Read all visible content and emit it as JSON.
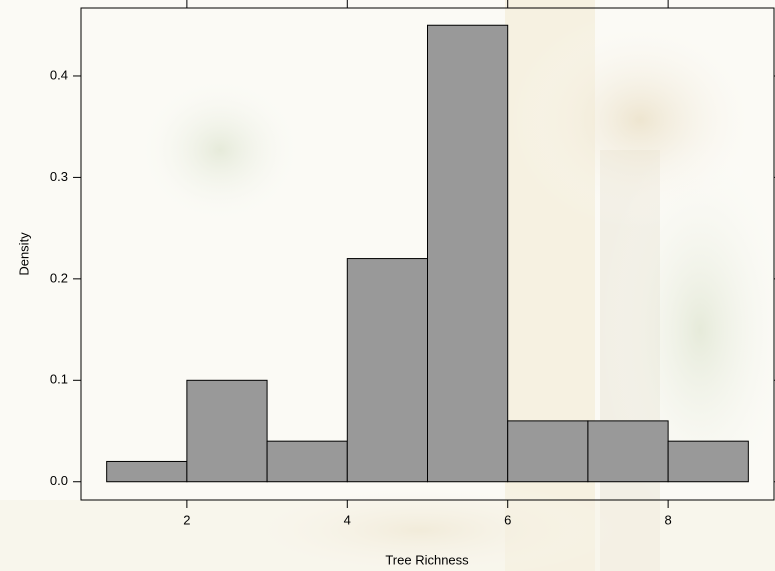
{
  "chart_data": {
    "type": "histogram",
    "xlabel": "Tree Richness",
    "ylabel": "Density",
    "bins": [
      1,
      2,
      3,
      4,
      5,
      6,
      7,
      8,
      9
    ],
    "values": [
      0.02,
      0.1,
      0.04,
      0.22,
      0.45,
      0.06,
      0.06,
      0.04
    ],
    "color": "#999999",
    "xlim": [
      0.68,
      9.32
    ],
    "ylim": [
      -0.018,
      0.467
    ],
    "xticks": [
      2,
      4,
      6,
      8
    ],
    "yticks": [
      {
        "value": 0,
        "label": "0.0"
      },
      0.1,
      0.2,
      0.3,
      0.4
    ]
  }
}
